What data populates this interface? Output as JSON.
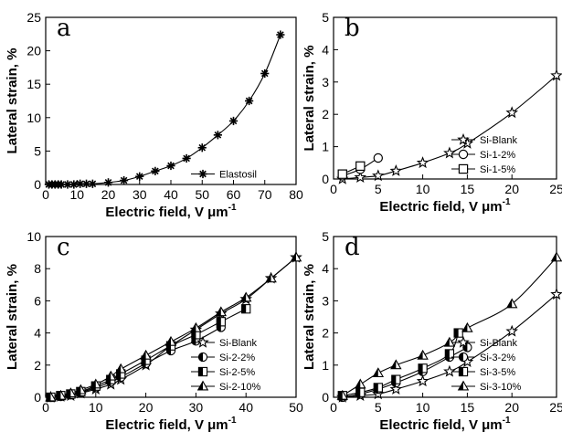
{
  "chart_data": [
    {
      "panel_label": "a",
      "type": "line",
      "xlabel": "Electric field, V μm",
      "ylabel": "Lateral strain, %",
      "xlim": [
        0,
        80
      ],
      "ylim": [
        0,
        25
      ],
      "x_ticks": [
        0,
        10,
        20,
        30,
        40,
        50,
        60,
        70,
        80
      ],
      "y_ticks": [
        0,
        5,
        10,
        15,
        20,
        25
      ],
      "legend_position": "bottom-right",
      "series": [
        {
          "name": "Elastosil",
          "marker": "asterisk",
          "x": [
            1,
            2,
            3,
            4,
            5,
            7,
            9,
            11,
            13,
            15,
            20,
            25,
            30,
            35,
            40,
            45,
            50,
            55,
            60,
            65,
            70,
            75
          ],
          "y": [
            0.0,
            0.0,
            0.0,
            0.0,
            0.0,
            0.0,
            0.0,
            0.1,
            0.1,
            0.1,
            0.3,
            0.6,
            1.2,
            2.0,
            2.8,
            3.9,
            5.5,
            7.4,
            9.5,
            12.5,
            16.6,
            22.4
          ]
        }
      ]
    },
    {
      "panel_label": "b",
      "type": "line",
      "xlabel": "Electric field, V μm",
      "ylabel": "Lateral strain, %",
      "xlim": [
        0,
        25
      ],
      "ylim": [
        0,
        5
      ],
      "x_ticks": [
        0,
        5,
        10,
        15,
        20,
        25
      ],
      "y_ticks": [
        0,
        1,
        2,
        3,
        4,
        5
      ],
      "legend_position": "bottom-right",
      "series": [
        {
          "name": "Si-Blank",
          "marker": "star-open",
          "x": [
            1,
            3,
            5,
            7,
            10,
            13,
            15,
            20,
            25
          ],
          "y": [
            0.0,
            0.05,
            0.1,
            0.25,
            0.5,
            0.8,
            1.1,
            2.05,
            3.2
          ]
        },
        {
          "name": "Si-1-2%",
          "marker": "circle-open",
          "x": [
            1,
            3,
            5
          ],
          "y": [
            0.1,
            0.3,
            0.65
          ]
        },
        {
          "name": "Si-1-5%",
          "marker": "square-open",
          "x": [
            1,
            3
          ],
          "y": [
            0.15,
            0.4
          ]
        }
      ]
    },
    {
      "panel_label": "c",
      "type": "line",
      "xlabel": "Electric field, V μm",
      "ylabel": "Lateral strain, %",
      "xlim": [
        0,
        50
      ],
      "ylim": [
        0,
        10
      ],
      "x_ticks": [
        0,
        10,
        20,
        30,
        40,
        50
      ],
      "y_ticks": [
        0,
        2,
        4,
        6,
        8,
        10
      ],
      "legend_position": "bottom-right",
      "series": [
        {
          "name": "Si-Blank",
          "marker": "star-open",
          "x": [
            1,
            3,
            5,
            7,
            10,
            13,
            15,
            20,
            25,
            30,
            35,
            40,
            45,
            50
          ],
          "y": [
            0.0,
            0.05,
            0.1,
            0.25,
            0.5,
            0.8,
            1.1,
            2.0,
            3.2,
            4.2,
            5.2,
            6.1,
            7.4,
            8.7
          ]
        },
        {
          "name": "Si-2-2%",
          "marker": "circle-half",
          "x": [
            1,
            3,
            5,
            7,
            10,
            13,
            15,
            20,
            25,
            30,
            35
          ],
          "y": [
            0.0,
            0.05,
            0.15,
            0.3,
            0.6,
            0.95,
            1.25,
            2.1,
            2.9,
            3.5,
            4.35
          ]
        },
        {
          "name": "Si-2-5%",
          "marker": "square-half",
          "x": [
            1,
            3,
            5,
            7,
            10,
            13,
            15,
            20,
            25,
            30,
            35,
            40
          ],
          "y": [
            0.0,
            0.1,
            0.2,
            0.35,
            0.7,
            1.1,
            1.45,
            2.3,
            3.2,
            3.9,
            4.7,
            5.5
          ]
        },
        {
          "name": "Si-2-10%",
          "marker": "triangle-half",
          "x": [
            1,
            3,
            5,
            7,
            10,
            13,
            15,
            20,
            25,
            30,
            35,
            40,
            45,
            50
          ],
          "y": [
            0.0,
            0.1,
            0.25,
            0.45,
            0.8,
            1.3,
            1.75,
            2.6,
            3.45,
            4.3,
            5.3,
            6.2,
            7.4,
            8.7
          ]
        }
      ]
    },
    {
      "panel_label": "d",
      "type": "line",
      "xlabel": "Electric field, V μm",
      "ylabel": "Lateral strain, %",
      "xlim": [
        0,
        25
      ],
      "ylim": [
        0,
        5
      ],
      "x_ticks": [
        0,
        5,
        10,
        15,
        20,
        25
      ],
      "y_ticks": [
        0,
        1,
        2,
        3,
        4,
        5
      ],
      "legend_position": "bottom-right",
      "series": [
        {
          "name": "Si-Blank",
          "marker": "star-open",
          "x": [
            1,
            3,
            5,
            7,
            10,
            13,
            15,
            20,
            25
          ],
          "y": [
            0.0,
            0.05,
            0.1,
            0.25,
            0.5,
            0.8,
            1.1,
            2.05,
            3.2
          ]
        },
        {
          "name": "Si-3-2%",
          "marker": "circle-half",
          "x": [
            1,
            3,
            5,
            7,
            10,
            13,
            15
          ],
          "y": [
            0.0,
            0.1,
            0.25,
            0.45,
            0.8,
            1.25,
            1.55
          ]
        },
        {
          "name": "Si-3-5%",
          "marker": "square-half",
          "x": [
            1,
            3,
            5,
            7,
            10,
            13,
            14
          ],
          "y": [
            0.05,
            0.15,
            0.3,
            0.55,
            0.9,
            1.35,
            2.0
          ]
        },
        {
          "name": "Si-3-10%",
          "marker": "triangle-half",
          "x": [
            1,
            3,
            5,
            7,
            10,
            13,
            15,
            20,
            25
          ],
          "y": [
            0.05,
            0.4,
            0.75,
            1.0,
            1.3,
            1.7,
            2.15,
            2.9,
            4.35
          ]
        }
      ]
    }
  ]
}
